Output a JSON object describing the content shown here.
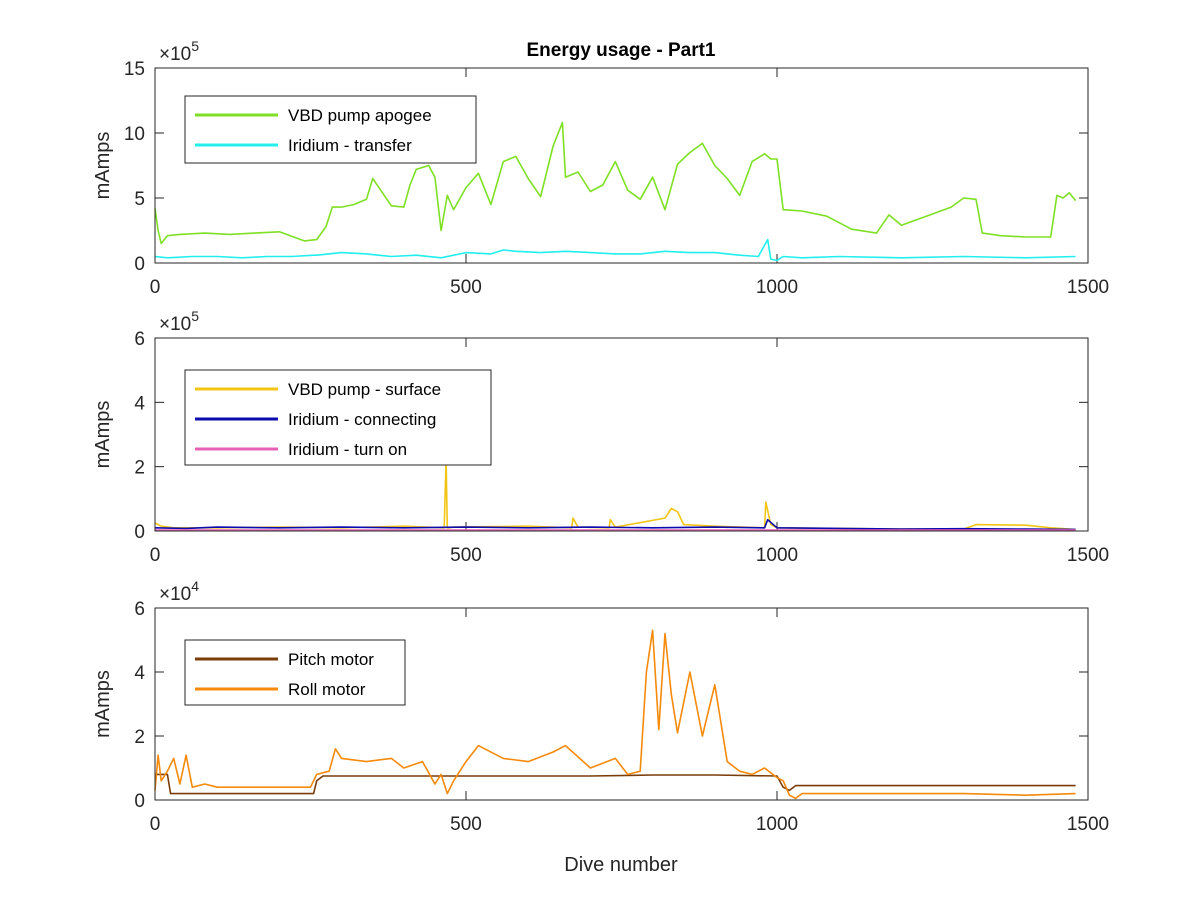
{
  "chart_data": [
    {
      "type": "line",
      "title": "Energy usage - Part1",
      "xlabel": "",
      "ylabel": "mAmps",
      "exponent_label": "×10^5",
      "exponent_base": "×10",
      "exponent_power": "5",
      "xlim": [
        0,
        1500
      ],
      "ylim": [
        0,
        15
      ],
      "xticks": [
        "0",
        "500",
        "1000",
        "1500"
      ],
      "yticks": [
        "0",
        "5",
        "10",
        "15"
      ],
      "legend_placement": "top-left",
      "series": [
        {
          "name": "VBD pump apogee",
          "color": "#7ee024",
          "x": [
            0,
            5,
            10,
            20,
            40,
            80,
            120,
            160,
            200,
            240,
            260,
            275,
            285,
            300,
            320,
            340,
            350,
            360,
            380,
            400,
            410,
            420,
            440,
            450,
            460,
            470,
            480,
            500,
            520,
            540,
            560,
            580,
            600,
            620,
            640,
            655,
            660,
            680,
            700,
            720,
            740,
            760,
            780,
            800,
            820,
            840,
            860,
            880,
            900,
            920,
            940,
            960,
            980,
            990,
            1000,
            1010,
            1040,
            1080,
            1120,
            1160,
            1180,
            1200,
            1240,
            1280,
            1300,
            1320,
            1330,
            1360,
            1400,
            1440,
            1450,
            1460,
            1470,
            1480
          ],
          "values": [
            4.2,
            2.5,
            1.5,
            2.1,
            2.2,
            2.3,
            2.2,
            2.3,
            2.4,
            1.7,
            1.8,
            2.8,
            4.3,
            4.3,
            4.5,
            4.9,
            6.5,
            5.8,
            4.4,
            4.3,
            6.0,
            7.2,
            7.5,
            6.6,
            2.5,
            5.2,
            4.1,
            5.8,
            6.9,
            4.5,
            7.8,
            8.2,
            6.5,
            5.1,
            9.0,
            10.8,
            6.6,
            7.0,
            5.5,
            6.0,
            7.8,
            5.6,
            4.9,
            6.6,
            4.1,
            7.6,
            8.5,
            9.2,
            7.5,
            6.5,
            5.2,
            7.8,
            8.4,
            8.0,
            8.0,
            4.1,
            4.0,
            3.6,
            2.6,
            2.3,
            3.7,
            2.9,
            3.6,
            4.3,
            5.0,
            4.9,
            2.3,
            2.1,
            2.0,
            2.0,
            5.2,
            5.0,
            5.4,
            4.8
          ]
        },
        {
          "name": "Iridium - transfer",
          "color": "#22eeee",
          "x": [
            0,
            20,
            60,
            100,
            140,
            180,
            220,
            255,
            260,
            300,
            340,
            380,
            420,
            460,
            500,
            540,
            560,
            580,
            620,
            660,
            700,
            740,
            780,
            820,
            860,
            900,
            940,
            970,
            985,
            990,
            1000,
            1010,
            1040,
            1100,
            1200,
            1300,
            1400,
            1480
          ],
          "values": [
            0.5,
            0.4,
            0.5,
            0.5,
            0.4,
            0.5,
            0.5,
            0.6,
            0.6,
            0.8,
            0.7,
            0.5,
            0.6,
            0.4,
            0.8,
            0.7,
            1.0,
            0.9,
            0.8,
            0.9,
            0.8,
            0.7,
            0.7,
            0.9,
            0.8,
            0.8,
            0.6,
            0.5,
            1.8,
            0.3,
            0.2,
            0.5,
            0.4,
            0.5,
            0.4,
            0.5,
            0.4,
            0.5
          ]
        }
      ]
    },
    {
      "type": "line",
      "title": "",
      "xlabel": "",
      "ylabel": "mAmps",
      "exponent_label": "×10^5",
      "exponent_base": "×10",
      "exponent_power": "5",
      "xlim": [
        0,
        1500
      ],
      "ylim": [
        0,
        6
      ],
      "xticks": [
        "0",
        "500",
        "1000",
        "1500"
      ],
      "yticks": [
        "0",
        "2",
        "4",
        "6"
      ],
      "legend_placement": "top-left",
      "series": [
        {
          "name": "VBD pump - surface",
          "color": "#f2c514",
          "x": [
            0,
            10,
            30,
            100,
            200,
            300,
            400,
            465,
            468,
            470,
            473,
            480,
            600,
            670,
            672,
            680,
            730,
            732,
            740,
            820,
            830,
            840,
            850,
            900,
            980,
            982,
            990,
            1000,
            1100,
            1200,
            1300,
            1320,
            1400,
            1440,
            1480
          ],
          "values": [
            0.25,
            0.15,
            0.1,
            0.1,
            0.12,
            0.1,
            0.15,
            0.1,
            2.2,
            0.1,
            0.1,
            0.12,
            0.15,
            0.1,
            0.4,
            0.12,
            0.1,
            0.35,
            0.12,
            0.4,
            0.7,
            0.6,
            0.2,
            0.15,
            0.1,
            0.9,
            0.2,
            0.1,
            0.08,
            0.06,
            0.06,
            0.2,
            0.18,
            0.1,
            0.05
          ]
        },
        {
          "name": "Iridium - connecting",
          "color": "#0b0bb0",
          "x": [
            0,
            50,
            100,
            200,
            300,
            400,
            500,
            600,
            700,
            800,
            900,
            980,
            985,
            1000,
            1100,
            1200,
            1300,
            1400,
            1480
          ],
          "values": [
            0.1,
            0.08,
            0.12,
            0.1,
            0.12,
            0.1,
            0.12,
            0.1,
            0.12,
            0.1,
            0.12,
            0.1,
            0.35,
            0.1,
            0.08,
            0.06,
            0.07,
            0.06,
            0.05
          ]
        },
        {
          "name": "Iridium - turn on",
          "color": "#e561b5",
          "x": [
            0,
            500,
            1000,
            1480
          ],
          "values": [
            0.03,
            0.03,
            0.03,
            0.03
          ]
        }
      ]
    },
    {
      "type": "line",
      "title": "",
      "xlabel": "Dive number",
      "ylabel": "mAmps",
      "exponent_label": "×10^4",
      "exponent_base": "×10",
      "exponent_power": "4",
      "xlim": [
        0,
        1500
      ],
      "ylim": [
        0,
        6
      ],
      "xticks": [
        "0",
        "500",
        "1000",
        "1500"
      ],
      "yticks": [
        "0",
        "2",
        "4",
        "6"
      ],
      "legend_placement": "top-left",
      "series": [
        {
          "name": "Pitch motor",
          "color": "#7a3d0a",
          "x": [
            0,
            20,
            25,
            100,
            200,
            255,
            260,
            270,
            300,
            400,
            500,
            600,
            700,
            800,
            900,
            1000,
            1010,
            1020,
            1030,
            1100,
            1200,
            1300,
            1400,
            1480
          ],
          "values": [
            0.8,
            0.8,
            0.2,
            0.2,
            0.2,
            0.2,
            0.6,
            0.75,
            0.75,
            0.75,
            0.75,
            0.75,
            0.75,
            0.78,
            0.78,
            0.75,
            0.4,
            0.3,
            0.45,
            0.45,
            0.45,
            0.45,
            0.45,
            0.45
          ]
        },
        {
          "name": "Roll motor",
          "color": "#f58a0b",
          "x": [
            0,
            5,
            10,
            20,
            30,
            40,
            50,
            60,
            80,
            100,
            150,
            200,
            250,
            260,
            280,
            290,
            300,
            340,
            380,
            400,
            430,
            450,
            460,
            470,
            480,
            500,
            520,
            560,
            600,
            640,
            660,
            700,
            740,
            760,
            780,
            790,
            800,
            810,
            820,
            830,
            840,
            860,
            880,
            900,
            920,
            940,
            960,
            980,
            1000,
            1010,
            1020,
            1030,
            1040,
            1100,
            1200,
            1300,
            1400,
            1480
          ],
          "values": [
            0.3,
            1.4,
            0.6,
            0.9,
            1.3,
            0.5,
            1.4,
            0.4,
            0.5,
            0.4,
            0.4,
            0.4,
            0.4,
            0.8,
            0.9,
            1.6,
            1.3,
            1.2,
            1.3,
            1.0,
            1.2,
            0.5,
            0.8,
            0.2,
            0.6,
            1.2,
            1.7,
            1.3,
            1.2,
            1.5,
            1.7,
            1.0,
            1.3,
            0.8,
            0.9,
            4.0,
            5.3,
            2.2,
            5.2,
            3.3,
            2.1,
            4.0,
            2.0,
            3.6,
            1.2,
            0.9,
            0.8,
            1.0,
            0.7,
            0.6,
            0.15,
            0.05,
            0.2,
            0.2,
            0.2,
            0.2,
            0.15,
            0.2
          ]
        }
      ]
    }
  ]
}
